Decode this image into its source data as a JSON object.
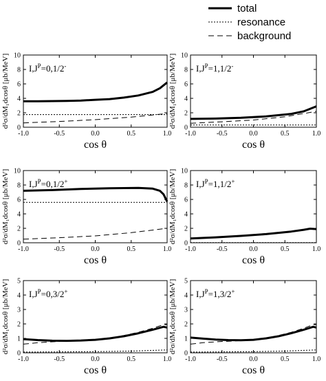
{
  "legend": {
    "items": [
      {
        "label": "total",
        "style": "solid"
      },
      {
        "label": "resonance",
        "style": "dotted"
      },
      {
        "label": "background",
        "style": "dashed"
      }
    ]
  },
  "chart_data": [
    {
      "type": "line",
      "panel_label": [
        "I,J",
        "P",
        "=0,1/2",
        "-"
      ],
      "xlabel": "cos θ",
      "ylabel": "d²σ/dM₁dcosθ [μb/MeV]",
      "xlim": [
        -1.0,
        1.0
      ],
      "ylim": [
        0,
        10
      ],
      "xticks": [
        "-1.0",
        "-0.5",
        "0.0",
        "0.5",
        "1.0"
      ],
      "yticks": [
        "0",
        "2",
        "4",
        "6",
        "8",
        "10"
      ],
      "series": [
        {
          "name": "total",
          "x": [
            -1.0,
            -0.8,
            -0.6,
            -0.4,
            -0.2,
            0.0,
            0.2,
            0.4,
            0.6,
            0.8,
            0.9,
            1.0
          ],
          "y": [
            3.6,
            3.6,
            3.62,
            3.65,
            3.7,
            3.8,
            3.9,
            4.1,
            4.4,
            4.9,
            5.4,
            6.2
          ]
        },
        {
          "name": "resonance",
          "x": [
            -1.0,
            1.0
          ],
          "y": [
            1.75,
            1.75
          ]
        },
        {
          "name": "background",
          "x": [
            -1.0,
            -0.5,
            0.0,
            0.5,
            1.0
          ],
          "y": [
            0.6,
            0.8,
            1.05,
            1.4,
            1.9
          ]
        }
      ]
    },
    {
      "type": "line",
      "panel_label": [
        "I,J",
        "P",
        "=1,1/2",
        "-"
      ],
      "xlabel": "cos θ",
      "ylabel": "d²σ/dM₁dcosθ [μb/MeV]",
      "xlim": [
        -1.0,
        1.0
      ],
      "ylim": [
        0,
        10
      ],
      "xticks": [
        "-1.0",
        "-0.5",
        "0.0",
        "0.5",
        "1.0"
      ],
      "yticks": [
        "0",
        "2",
        "4",
        "6",
        "8",
        "10"
      ],
      "series": [
        {
          "name": "total",
          "x": [
            -1.0,
            -0.6,
            -0.2,
            0.2,
            0.6,
            0.8,
            1.0
          ],
          "y": [
            1.15,
            1.2,
            1.3,
            1.5,
            1.85,
            2.2,
            2.9
          ]
        },
        {
          "name": "resonance",
          "x": [
            -1.0,
            1.0
          ],
          "y": [
            0.3,
            0.3
          ]
        },
        {
          "name": "background",
          "x": [
            -1.0,
            -0.5,
            0.0,
            0.5,
            1.0
          ],
          "y": [
            0.55,
            0.75,
            1.0,
            1.45,
            2.2
          ]
        }
      ]
    },
    {
      "type": "line",
      "panel_label": [
        "I,J",
        "P",
        "=0,1/2",
        "+"
      ],
      "xlabel": "cos θ",
      "ylabel": "d²σ/dM₁dcosθ [μb/MeV]",
      "xlim": [
        -1.0,
        1.0
      ],
      "ylim": [
        0,
        10
      ],
      "xticks": [
        "-1.0",
        "-0.5",
        "0.0",
        "0.5",
        "1.0"
      ],
      "yticks": [
        "0",
        "2",
        "4",
        "6",
        "8",
        "10"
      ],
      "series": [
        {
          "name": "total",
          "x": [
            -1.0,
            -0.6,
            -0.2,
            0.2,
            0.6,
            0.8,
            0.9,
            0.95,
            1.0
          ],
          "y": [
            7.2,
            7.3,
            7.45,
            7.55,
            7.6,
            7.5,
            7.2,
            6.7,
            5.7
          ]
        },
        {
          "name": "resonance",
          "x": [
            -1.0,
            1.0
          ],
          "y": [
            5.6,
            5.6
          ]
        },
        {
          "name": "background",
          "x": [
            -1.0,
            -0.5,
            0.0,
            0.5,
            1.0
          ],
          "y": [
            0.5,
            0.7,
            0.95,
            1.4,
            2.0
          ]
        }
      ]
    },
    {
      "type": "line",
      "panel_label": [
        "I,J",
        "P",
        "=1,1/2",
        "+"
      ],
      "xlabel": "cos θ",
      "ylabel": "d²σ/dM₁dcosθ [μb/MeV]",
      "xlim": [
        -1.0,
        1.0
      ],
      "ylim": [
        0,
        10
      ],
      "xticks": [
        "-1.0",
        "-0.5",
        "0.0",
        "0.5",
        "1.0"
      ],
      "yticks": [
        "0",
        "2",
        "4",
        "6",
        "8",
        "10"
      ],
      "series": [
        {
          "name": "total",
          "x": [
            -1.0,
            -0.6,
            -0.2,
            0.2,
            0.6,
            0.8,
            0.9,
            1.0
          ],
          "y": [
            0.6,
            0.75,
            0.95,
            1.2,
            1.55,
            1.8,
            1.95,
            1.9
          ]
        },
        {
          "name": "resonance",
          "x": [
            -1.0,
            1.0
          ],
          "y": [
            0.02,
            0.02
          ]
        },
        {
          "name": "background",
          "x": [
            -1.0,
            -0.6,
            -0.2,
            0.2,
            0.6,
            0.8,
            0.9,
            1.0
          ],
          "y": [
            0.55,
            0.7,
            0.9,
            1.15,
            1.5,
            1.75,
            1.9,
            1.85
          ]
        }
      ]
    },
    {
      "type": "line",
      "panel_label": [
        "I,J",
        "P",
        "=0,3/2",
        "+"
      ],
      "xlabel": "cos θ",
      "ylabel": "d²σ/dM₁dcosθ [μb/MeV]",
      "xlim": [
        -1.0,
        1.0
      ],
      "ylim": [
        0,
        5
      ],
      "xticks": [
        "-1.0",
        "-0.5",
        "0.0",
        "0.5",
        "1.0"
      ],
      "yticks": [
        "0",
        "1",
        "2",
        "3",
        "4",
        "5"
      ],
      "series": [
        {
          "name": "total",
          "x": [
            -1.0,
            -0.8,
            -0.6,
            -0.4,
            -0.2,
            0.0,
            0.2,
            0.4,
            0.6,
            0.8,
            0.95,
            1.0
          ],
          "y": [
            0.95,
            0.88,
            0.84,
            0.83,
            0.85,
            0.9,
            1.0,
            1.15,
            1.35,
            1.6,
            1.8,
            1.75
          ]
        },
        {
          "name": "resonance",
          "x": [
            -1.0,
            -0.5,
            0.0,
            0.5,
            1.0
          ],
          "y": [
            0.05,
            0.06,
            0.08,
            0.12,
            0.2
          ]
        },
        {
          "name": "background",
          "x": [
            -1.0,
            -0.8,
            -0.6,
            -0.4,
            -0.2,
            0.0,
            0.2,
            0.4,
            0.6,
            0.8,
            0.95,
            1.0
          ],
          "y": [
            0.6,
            0.7,
            0.76,
            0.8,
            0.84,
            0.9,
            1.02,
            1.2,
            1.42,
            1.7,
            1.95,
            1.95
          ]
        }
      ]
    },
    {
      "type": "line",
      "panel_label": [
        "I,J",
        "P",
        "=1,3/2",
        "+"
      ],
      "xlabel": "cos θ",
      "ylabel": "d²σ/dM₁dcosθ [μb/MeV]",
      "xlim": [
        -1.0,
        1.0
      ],
      "ylim": [
        0,
        5
      ],
      "xticks": [
        "-1.0",
        "-0.5",
        "0.0",
        "0.5",
        "1.0"
      ],
      "yticks": [
        "0",
        "1",
        "2",
        "3",
        "4",
        "5"
      ],
      "series": [
        {
          "name": "total",
          "x": [
            -1.0,
            -0.8,
            -0.6,
            -0.4,
            -0.2,
            0.0,
            0.2,
            0.4,
            0.6,
            0.8,
            0.95,
            1.0
          ],
          "y": [
            1.05,
            0.98,
            0.92,
            0.88,
            0.87,
            0.9,
            1.0,
            1.15,
            1.35,
            1.6,
            1.8,
            1.75
          ]
        },
        {
          "name": "resonance",
          "x": [
            -1.0,
            -0.5,
            0.0,
            0.5,
            1.0
          ],
          "y": [
            0.05,
            0.06,
            0.08,
            0.12,
            0.2
          ]
        },
        {
          "name": "background",
          "x": [
            -1.0,
            -0.8,
            -0.6,
            -0.4,
            -0.2,
            0.0,
            0.2,
            0.4,
            0.6,
            0.8,
            0.95,
            1.0
          ],
          "y": [
            0.6,
            0.7,
            0.76,
            0.8,
            0.84,
            0.9,
            1.02,
            1.2,
            1.42,
            1.7,
            1.95,
            1.95
          ]
        }
      ]
    }
  ]
}
